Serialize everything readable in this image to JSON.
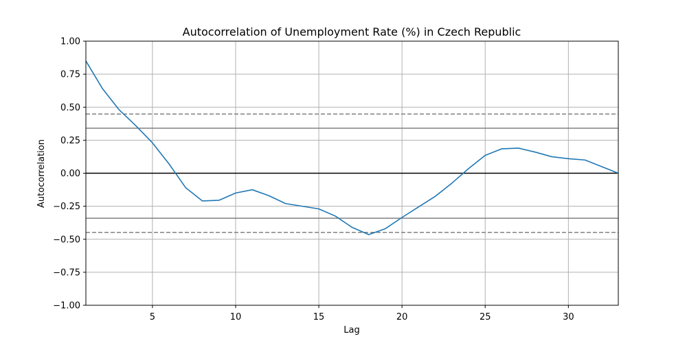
{
  "chart_data": {
    "type": "line",
    "title": "Autocorrelation of Unemployment Rate (%) in Czech Republic",
    "xlabel": "Lag",
    "ylabel": "Autocorrelation",
    "xlim": [
      1,
      33
    ],
    "ylim": [
      -1.0,
      1.0
    ],
    "grid": true,
    "x_ticks": [
      5,
      10,
      15,
      20,
      25,
      30
    ],
    "y_ticks": [
      -1.0,
      -0.75,
      -0.5,
      -0.25,
      0.0,
      0.25,
      0.5,
      0.75,
      1.0
    ],
    "x_tick_labels": [
      "5",
      "10",
      "15",
      "20",
      "25",
      "30"
    ],
    "y_tick_labels": [
      "−1.00",
      "−0.75",
      "−0.50",
      "−0.25",
      "0.00",
      "0.25",
      "0.50",
      "0.75",
      "1.00"
    ],
    "series": [
      {
        "color": "#1f77b4",
        "x": [
          1,
          2,
          3,
          4,
          5,
          6,
          7,
          8,
          9,
          10,
          11,
          12,
          13,
          14,
          15,
          16,
          17,
          18,
          19,
          20,
          21,
          22,
          23,
          24,
          25,
          26,
          27,
          28,
          29,
          30,
          31,
          32,
          33
        ],
        "y": [
          0.85,
          0.64,
          0.48,
          0.36,
          0.23,
          0.07,
          -0.11,
          -0.21,
          -0.205,
          -0.15,
          -0.125,
          -0.17,
          -0.23,
          -0.25,
          -0.27,
          -0.325,
          -0.41,
          -0.465,
          -0.42,
          -0.335,
          -0.255,
          -0.175,
          -0.075,
          0.035,
          0.135,
          0.185,
          0.19,
          0.16,
          0.125,
          0.11,
          0.1,
          0.05,
          0.0
        ]
      }
    ],
    "reference_lines": [
      {
        "y": 0.0,
        "style": "solid",
        "color": "#000000"
      },
      {
        "y": 0.341,
        "style": "solid",
        "color": "#808080"
      },
      {
        "y": -0.341,
        "style": "solid",
        "color": "#808080"
      },
      {
        "y": 0.448,
        "style": "dashed",
        "color": "#808080"
      },
      {
        "y": -0.448,
        "style": "dashed",
        "color": "#808080"
      }
    ]
  }
}
